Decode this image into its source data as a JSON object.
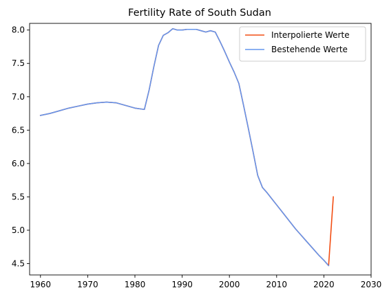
{
  "chart_data": {
    "type": "line",
    "title": "Fertility Rate of South Sudan",
    "xlabel": "",
    "ylabel": "",
    "xlim": [
      1957.7,
      2030
    ],
    "ylim": [
      4.33,
      8.1
    ],
    "xticks": [
      1960,
      1970,
      1980,
      1990,
      2000,
      2010,
      2020,
      2030
    ],
    "yticks": [
      4.5,
      5.0,
      5.5,
      6.0,
      6.5,
      7.0,
      7.5,
      8.0
    ],
    "ytick_labels": [
      "4.5",
      "5.0",
      "5.5",
      "6.0",
      "6.5",
      "7.0",
      "7.5",
      "8.0"
    ],
    "grid": false,
    "legend_position": "top-right",
    "series": [
      {
        "name": "Interpolierte Werte",
        "color": "#f24d12",
        "x": [
          1960,
          1962,
          1964,
          1966,
          1968,
          1970,
          1972,
          1974,
          1976,
          1978,
          1980,
          1982,
          1983,
          1984,
          1985,
          1986,
          1987,
          1988,
          1989,
          1990,
          1991,
          1992,
          1993,
          1994,
          1995,
          1996,
          1997,
          1998,
          1999,
          2000,
          2001,
          2002,
          2003,
          2004,
          2005,
          2006,
          2007,
          2008,
          2009,
          2010,
          2011,
          2012,
          2013,
          2014,
          2015,
          2016,
          2017,
          2018,
          2019,
          2020,
          2021,
          2022
        ],
        "y": [
          6.72,
          6.75,
          6.79,
          6.83,
          6.86,
          6.89,
          6.91,
          6.92,
          6.91,
          6.87,
          6.83,
          6.81,
          7.1,
          7.45,
          7.77,
          7.92,
          7.96,
          8.02,
          8.0,
          8.0,
          8.01,
          8.01,
          8.01,
          7.99,
          7.97,
          7.99,
          7.97,
          7.83,
          7.68,
          7.52,
          7.37,
          7.2,
          6.87,
          6.53,
          6.18,
          5.82,
          5.64,
          5.56,
          5.47,
          5.38,
          5.29,
          5.2,
          5.11,
          5.02,
          4.94,
          4.86,
          4.78,
          4.7,
          4.62,
          4.55,
          4.47,
          5.5
        ]
      },
      {
        "name": "Bestehende Werte",
        "color": "#6495ed",
        "x": [
          1960,
          1962,
          1964,
          1966,
          1968,
          1970,
          1972,
          1974,
          1976,
          1978,
          1980,
          1982,
          1983,
          1984,
          1985,
          1986,
          1987,
          1988,
          1989,
          1990,
          1991,
          1992,
          1993,
          1994,
          1995,
          1996,
          1997,
          1998,
          1999,
          2000,
          2001,
          2002,
          2003,
          2004,
          2005,
          2006,
          2007,
          2008,
          2009,
          2010,
          2011,
          2012,
          2013,
          2014,
          2015,
          2016,
          2017,
          2018,
          2019,
          2020,
          2021
        ],
        "y": [
          6.72,
          6.75,
          6.79,
          6.83,
          6.86,
          6.89,
          6.91,
          6.92,
          6.91,
          6.87,
          6.83,
          6.81,
          7.1,
          7.45,
          7.77,
          7.92,
          7.96,
          8.02,
          8.0,
          8.0,
          8.01,
          8.01,
          8.01,
          7.99,
          7.97,
          7.99,
          7.97,
          7.83,
          7.68,
          7.52,
          7.37,
          7.2,
          6.87,
          6.53,
          6.18,
          5.82,
          5.64,
          5.56,
          5.47,
          5.38,
          5.29,
          5.2,
          5.11,
          5.02,
          4.94,
          4.86,
          4.78,
          4.7,
          4.62,
          4.55,
          4.47
        ]
      }
    ]
  }
}
